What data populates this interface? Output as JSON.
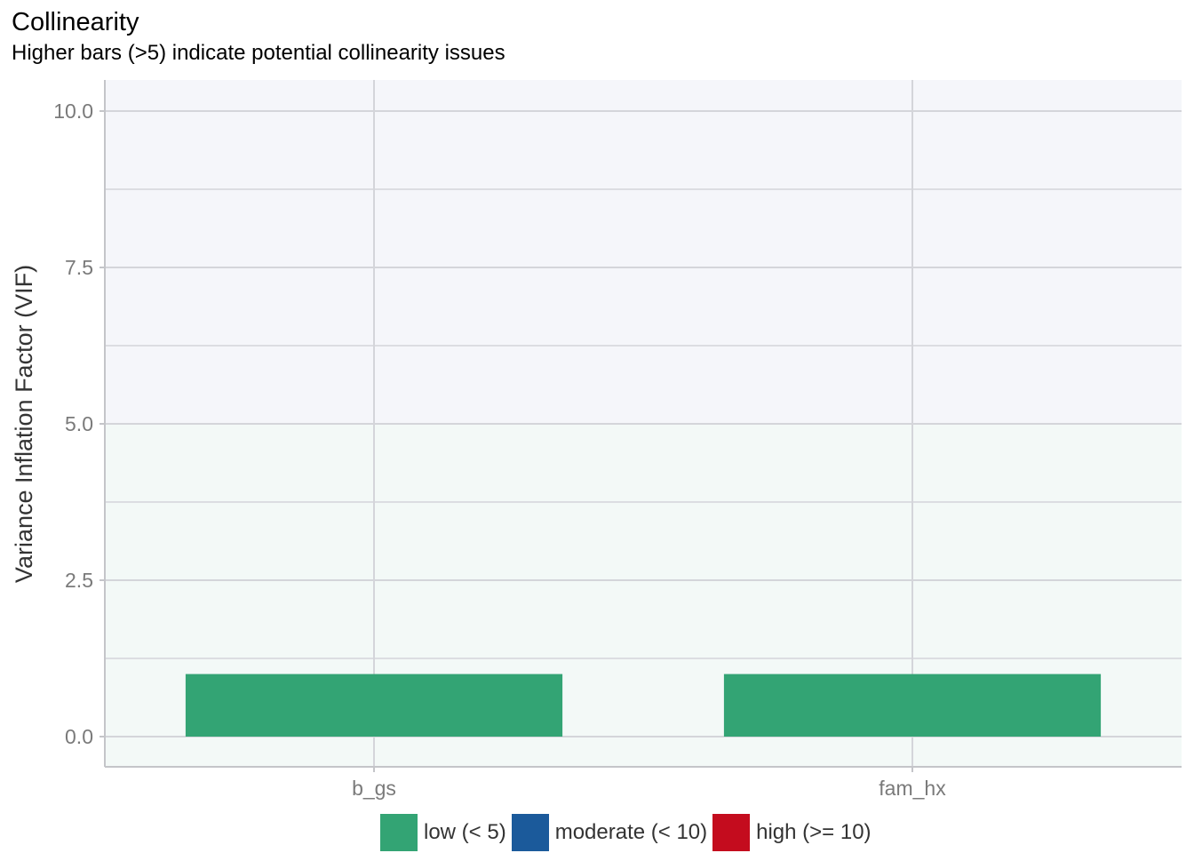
{
  "header": {
    "title": "Collinearity",
    "subtitle": "Higher bars (>5) indicate potential collinearity issues"
  },
  "chart_data": {
    "type": "bar",
    "title": "Collinearity",
    "subtitle": "Higher bars (>5) indicate potential collinearity issues",
    "xlabel": "",
    "ylabel": "Variance Inflation Factor (VIF)",
    "ylim": [
      0,
      10.5
    ],
    "yticks": [
      "0.0",
      "2.5",
      "5.0",
      "7.5",
      "10.0"
    ],
    "categories": [
      "b_gs",
      "fam_hx"
    ],
    "values": [
      1.0,
      1.0
    ],
    "bar_colors": [
      "#33a474",
      "#33a474"
    ],
    "background_bands": [
      {
        "from": 0,
        "to": 5,
        "color": "#f3f9f7"
      },
      {
        "from": 5,
        "to": 10.5,
        "color": "#f5f6fa"
      }
    ],
    "grid": true,
    "legend": {
      "position": "bottom",
      "items": [
        {
          "label": "low (< 5)",
          "color": "#33a474"
        },
        {
          "label": "moderate (< 10)",
          "color": "#1b5a9b"
        },
        {
          "label": "high (>= 10)",
          "color": "#c40c1e"
        }
      ]
    }
  }
}
